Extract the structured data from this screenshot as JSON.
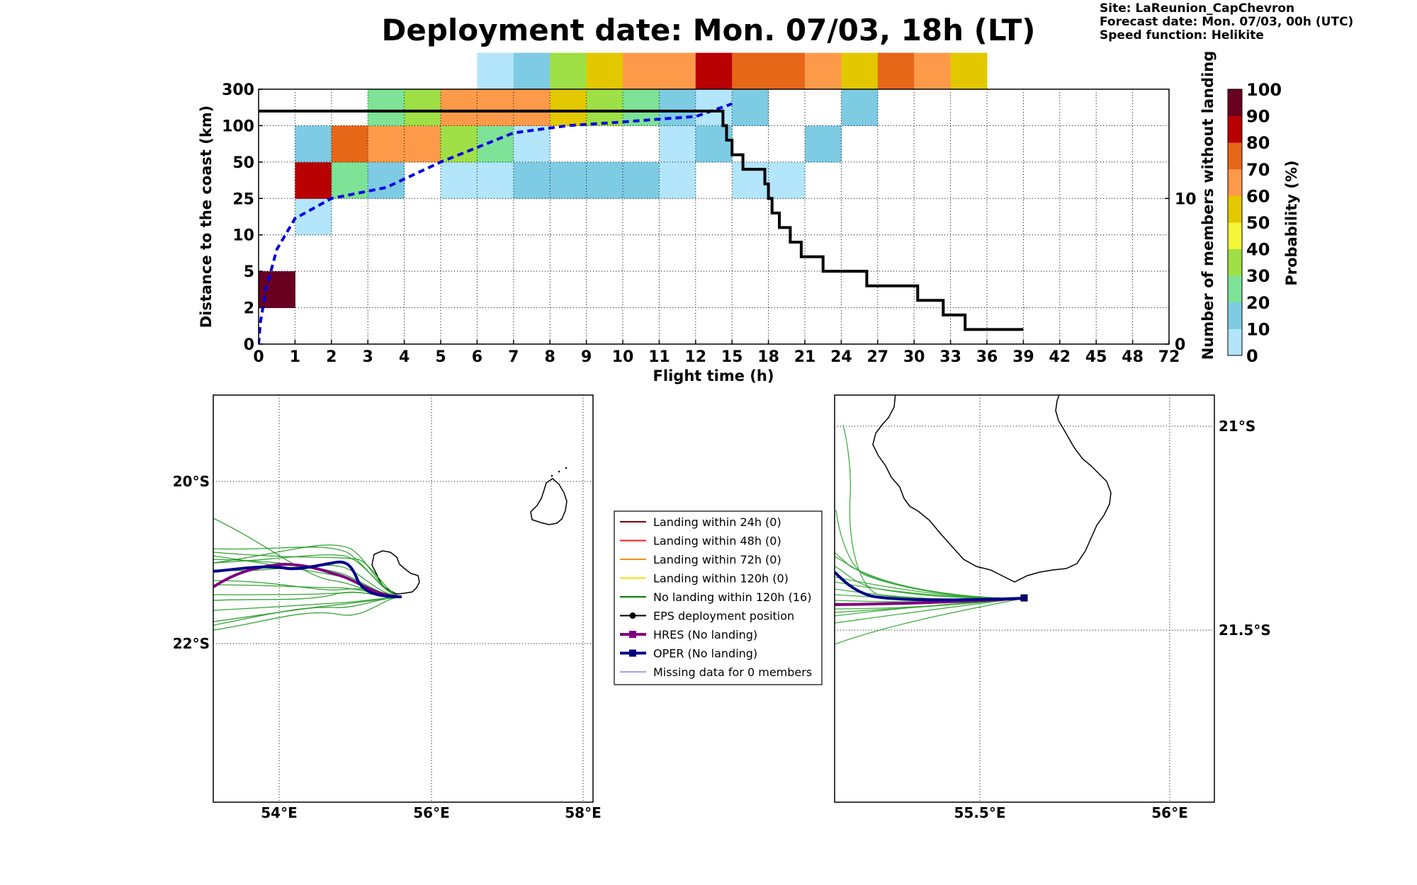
{
  "header": {
    "title": "Deployment date: Mon. 07/03, 18h (LT)",
    "site": "Site: LaReunion_CapChevron",
    "forecast_date": "Forecast date: Mon. 07/03, 00h (UTC)",
    "speed_function": "Speed function: Helikite"
  },
  "chart_data": [
    {
      "type": "heatmap",
      "xlabel": "Flight time (h)",
      "ylabel": "Distance to the coast (km)",
      "y2label": "Number of members without landing",
      "x_ticks": [
        "0",
        "1",
        "2",
        "3",
        "4",
        "5",
        "6",
        "7",
        "8",
        "9",
        "10",
        "11",
        "12",
        "15",
        "18",
        "21",
        "24",
        "27",
        "30",
        "33",
        "36",
        "39",
        "42",
        "45",
        "48",
        "72"
      ],
      "y_ticks": [
        "0",
        "2",
        "5",
        "10",
        "25",
        "50",
        "100",
        "300"
      ],
      "y2_ticks": [
        "0",
        "10"
      ],
      "y2lim": [
        0,
        17.5
      ],
      "colorbar": {
        "label": "Probability (%)",
        "ticks": [
          "0",
          "10",
          "20",
          "30",
          "40",
          "50",
          "60",
          "70",
          "80",
          "90",
          "100"
        ],
        "colors": [
          "#b3e5fb",
          "#7ecbe4",
          "#7ee297",
          "#9fe046",
          "#f5f53a",
          "#e3c800",
          "#fd9a4a",
          "#e66718",
          "#b80000",
          "#6a0021"
        ]
      },
      "cells": [
        {
          "x": 0,
          "y": 1,
          "p": 95
        },
        {
          "x": 1,
          "y": 3,
          "p": 5
        },
        {
          "x": 1,
          "y": 4,
          "p": 85
        },
        {
          "x": 1,
          "y": 5,
          "p": 15
        },
        {
          "x": 2,
          "y": 4,
          "p": 25
        },
        {
          "x": 2,
          "y": 5,
          "p": 75
        },
        {
          "x": 3,
          "y": 4,
          "p": 15
        },
        {
          "x": 3,
          "y": 5,
          "p": 65
        },
        {
          "x": 3,
          "y": 6,
          "p": 25
        },
        {
          "x": 4,
          "y": 5,
          "p": 65
        },
        {
          "x": 4,
          "y": 6,
          "p": 35
        },
        {
          "x": 5,
          "y": 4,
          "p": 5
        },
        {
          "x": 5,
          "y": 5,
          "p": 35
        },
        {
          "x": 5,
          "y": 6,
          "p": 65
        },
        {
          "x": 6,
          "y": 4,
          "p": 5
        },
        {
          "x": 6,
          "y": 5,
          "p": 25
        },
        {
          "x": 6,
          "y": 6,
          "p": 65
        },
        {
          "x": 6,
          "y": 7,
          "p": 5
        },
        {
          "x": 7,
          "y": 4,
          "p": 15
        },
        {
          "x": 7,
          "y": 5,
          "p": 5
        },
        {
          "x": 7,
          "y": 6,
          "p": 65
        },
        {
          "x": 7,
          "y": 7,
          "p": 15
        },
        {
          "x": 8,
          "y": 4,
          "p": 15
        },
        {
          "x": 8,
          "y": 6,
          "p": 55
        },
        {
          "x": 8,
          "y": 7,
          "p": 35
        },
        {
          "x": 9,
          "y": 4,
          "p": 15
        },
        {
          "x": 9,
          "y": 6,
          "p": 35
        },
        {
          "x": 9,
          "y": 7,
          "p": 55
        },
        {
          "x": 10,
          "y": 4,
          "p": 15
        },
        {
          "x": 10,
          "y": 6,
          "p": 25
        },
        {
          "x": 10,
          "y": 7,
          "p": 65
        },
        {
          "x": 11,
          "y": 4,
          "p": 5
        },
        {
          "x": 11,
          "y": 5,
          "p": 5
        },
        {
          "x": 11,
          "y": 6,
          "p": 15
        },
        {
          "x": 11,
          "y": 7,
          "p": 65
        },
        {
          "x": 12,
          "y": 5,
          "p": 15
        },
        {
          "x": 12,
          "y": 6,
          "p": 5
        },
        {
          "x": 12,
          "y": 7,
          "p": 85
        },
        {
          "x": 13,
          "y": 4,
          "p": 5
        },
        {
          "x": 13,
          "y": 6,
          "p": 15
        },
        {
          "x": 13,
          "y": 7,
          "p": 75
        },
        {
          "x": 14,
          "y": 4,
          "p": 5
        },
        {
          "x": 14,
          "y": 7,
          "p": 75
        },
        {
          "x": 15,
          "y": 5,
          "p": 15
        },
        {
          "x": 15,
          "y": 7,
          "p": 65
        },
        {
          "x": 16,
          "y": 6,
          "p": 15
        },
        {
          "x": 16,
          "y": 7,
          "p": 55
        },
        {
          "x": 17,
          "y": 7,
          "p": 75
        },
        {
          "x": 18,
          "y": 7,
          "p": 65
        },
        {
          "x": 19,
          "y": 7,
          "p": 55
        }
      ],
      "series": [
        {
          "name": "",
          "style": "dashed-blue",
          "axis": "left",
          "x": [
            0.0,
            0.05,
            0.2,
            0.5,
            1.0,
            2.0,
            3.0,
            3.5,
            5.0,
            7.0,
            8.5,
            10.0,
            11.0,
            12.0,
            13.0
          ],
          "y": [
            0.0,
            0.6,
            1.5,
            2.6,
            3.45,
            4.0,
            4.2,
            4.3,
            5.0,
            5.8,
            6.0,
            6.1,
            6.18,
            6.25,
            6.6
          ]
        },
        {
          "name": "",
          "style": "step-black",
          "axis": "right",
          "x": [
            0,
            12.7,
            12.75,
            12.85,
            13.0,
            13.3,
            13.9,
            14.0,
            14.1,
            14.3,
            14.6,
            14.9,
            15.5,
            16.3,
            16.7,
            17.9,
            18.1,
            18.8,
            19.4,
            21.0
          ],
          "y": [
            16,
            16,
            15,
            14,
            13,
            12,
            11,
            10,
            9,
            8,
            7,
            6,
            5,
            5,
            4,
            4,
            3,
            2,
            1,
            1
          ]
        }
      ]
    },
    {
      "type": "scatter",
      "map": "trajectories",
      "x_ticks": [
        "54°E",
        "56°E",
        "58°E"
      ],
      "y_ticks": [
        "20°S",
        "22°S"
      ],
      "legend": [
        {
          "label": "Landing within 24h (0)",
          "color": "#8b0000",
          "marker": "none",
          "width": 2
        },
        {
          "label": "Landing within 48h (0)",
          "color": "#ff1a1a",
          "marker": "none",
          "width": 2
        },
        {
          "label": "Landing within 72h (0)",
          "color": "#ff8c00",
          "marker": "none",
          "width": 2
        },
        {
          "label": "Landing within 120h (0)",
          "color": "#ffd700",
          "marker": "none",
          "width": 2
        },
        {
          "label": "No landing within 120h (16)",
          "color": "#008000",
          "marker": "none",
          "width": 2
        },
        {
          "label": "EPS deployment position",
          "color": "#000000",
          "marker": "circle",
          "width": 2
        },
        {
          "label": "HRES (No landing)",
          "color": "#800080",
          "marker": "square",
          "width": 4
        },
        {
          "label": "OPER (No landing)",
          "color": "#000080",
          "marker": "square",
          "width": 4
        },
        {
          "label": "Missing data for 0 members",
          "color": "#4040ff",
          "marker": "none",
          "width": 1
        }
      ]
    },
    {
      "type": "scatter",
      "map": "zoom",
      "x_ticks": [
        "55.5°E",
        "56°E"
      ],
      "y_ticks": [
        "21°S",
        "21.5°S"
      ]
    }
  ]
}
